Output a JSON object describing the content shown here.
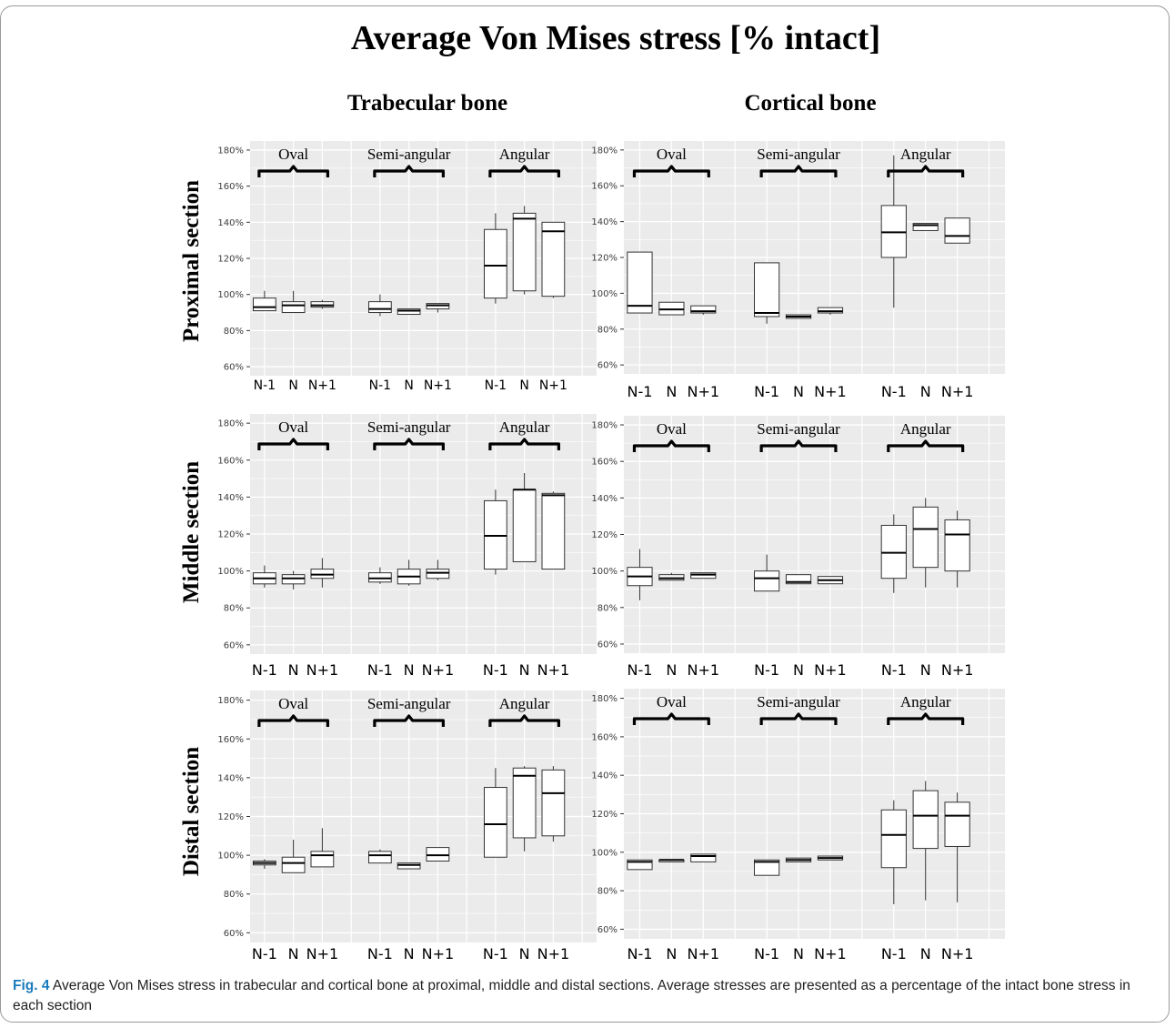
{
  "title": "Average Von Mises stress [% intact]",
  "caption": {
    "label": "Fig. 4",
    "text": " Average Von Mises stress in trabecular and cortical bone at proximal, middle and distal sections. Average stresses are presented as a percentage of the intact bone stress in each section"
  },
  "columns": [
    "Trabecular bone",
    "Cortical bone"
  ],
  "rows": [
    "Proximal section",
    "Middle section",
    "Distal section"
  ],
  "colors": {
    "panel_bg": "#ebebeb",
    "grid": "#ffffff",
    "box_fill": "#ffffff",
    "box_stroke": "#333333",
    "median": "#000000"
  },
  "chart_data": [
    {
      "type": "boxplot",
      "panel": "Trabecular bone / Proximal section",
      "ylim": [
        55,
        185
      ],
      "yticks": [
        "60%",
        "80%",
        "100%",
        "120%",
        "140%",
        "160%",
        "180%"
      ],
      "groups": [
        "Oval",
        "Semi-angular",
        "Angular"
      ],
      "categories": [
        "N-1",
        "N",
        "N+1"
      ],
      "boxes": [
        {
          "group": "Oval",
          "cat": "N-1",
          "min": 91,
          "q1": 91,
          "median": 93,
          "q3": 98,
          "max": 102
        },
        {
          "group": "Oval",
          "cat": "N",
          "min": 90,
          "q1": 90,
          "median": 94,
          "q3": 96,
          "max": 102
        },
        {
          "group": "Oval",
          "cat": "N+1",
          "min": 92,
          "q1": 93,
          "median": 94,
          "q3": 96,
          "max": 97
        },
        {
          "group": "Semi-angular",
          "cat": "N-1",
          "min": 88,
          "q1": 90,
          "median": 92,
          "q3": 96,
          "max": 100
        },
        {
          "group": "Semi-angular",
          "cat": "N",
          "min": 89,
          "q1": 89,
          "median": 91,
          "q3": 92,
          "max": 92
        },
        {
          "group": "Semi-angular",
          "cat": "N+1",
          "min": 90,
          "q1": 92,
          "median": 94,
          "q3": 95,
          "max": 95
        },
        {
          "group": "Angular",
          "cat": "N-1",
          "min": 95,
          "q1": 98,
          "median": 116,
          "q3": 136,
          "max": 145
        },
        {
          "group": "Angular",
          "cat": "N",
          "min": 100,
          "q1": 102,
          "median": 142,
          "q3": 145,
          "max": 149
        },
        {
          "group": "Angular",
          "cat": "N+1",
          "min": 98,
          "q1": 99,
          "median": 135,
          "q3": 140,
          "max": 140
        }
      ]
    },
    {
      "type": "boxplot",
      "panel": "Cortical bone / Proximal section",
      "ylim": [
        55,
        185
      ],
      "yticks": [
        "60%",
        "80%",
        "100%",
        "120%",
        "140%",
        "160%",
        "180%"
      ],
      "groups": [
        "Oval",
        "Semi-angular",
        "Angular"
      ],
      "categories": [
        "N-1",
        "N",
        "N+1"
      ],
      "boxes": [
        {
          "group": "Oval",
          "cat": "N-1",
          "min": 89,
          "q1": 89,
          "median": 93,
          "q3": 123,
          "max": 123
        },
        {
          "group": "Oval",
          "cat": "N",
          "min": 88,
          "q1": 88,
          "median": 91,
          "q3": 95,
          "max": 95
        },
        {
          "group": "Oval",
          "cat": "N+1",
          "min": 88,
          "q1": 89,
          "median": 90,
          "q3": 93,
          "max": 93
        },
        {
          "group": "Semi-angular",
          "cat": "N-1",
          "min": 83,
          "q1": 87,
          "median": 89,
          "q3": 117,
          "max": 117
        },
        {
          "group": "Semi-angular",
          "cat": "N",
          "min": 86,
          "q1": 86,
          "median": 87,
          "q3": 88,
          "max": 88
        },
        {
          "group": "Semi-angular",
          "cat": "N+1",
          "min": 88,
          "q1": 89,
          "median": 90,
          "q3": 92,
          "max": 92
        },
        {
          "group": "Angular",
          "cat": "N-1",
          "min": 92,
          "q1": 120,
          "median": 134,
          "q3": 149,
          "max": 177
        },
        {
          "group": "Angular",
          "cat": "N",
          "min": 135,
          "q1": 135,
          "median": 138,
          "q3": 139,
          "max": 139
        },
        {
          "group": "Angular",
          "cat": "N+1",
          "min": 128,
          "q1": 128,
          "median": 132,
          "q3": 142,
          "max": 142
        }
      ]
    },
    {
      "type": "boxplot",
      "panel": "Trabecular bone / Middle section",
      "ylim": [
        55,
        185
      ],
      "yticks": [
        "60%",
        "80%",
        "100%",
        "120%",
        "140%",
        "160%",
        "180%"
      ],
      "groups": [
        "Oval",
        "Semi-angular",
        "Angular"
      ],
      "categories": [
        "N-1",
        "N",
        "N+1"
      ],
      "boxes": [
        {
          "group": "Oval",
          "cat": "N-1",
          "min": 91,
          "q1": 93,
          "median": 96,
          "q3": 99,
          "max": 103
        },
        {
          "group": "Oval",
          "cat": "N",
          "min": 90,
          "q1": 93,
          "median": 96,
          "q3": 98,
          "max": 100
        },
        {
          "group": "Oval",
          "cat": "N+1",
          "min": 91,
          "q1": 96,
          "median": 98,
          "q3": 101,
          "max": 107
        },
        {
          "group": "Semi-angular",
          "cat": "N-1",
          "min": 93,
          "q1": 94,
          "median": 96,
          "q3": 99,
          "max": 102
        },
        {
          "group": "Semi-angular",
          "cat": "N",
          "min": 92,
          "q1": 93,
          "median": 97,
          "q3": 101,
          "max": 106
        },
        {
          "group": "Semi-angular",
          "cat": "N+1",
          "min": 95,
          "q1": 96,
          "median": 99,
          "q3": 101,
          "max": 106
        },
        {
          "group": "Angular",
          "cat": "N-1",
          "min": 98,
          "q1": 101,
          "median": 119,
          "q3": 138,
          "max": 144
        },
        {
          "group": "Angular",
          "cat": "N",
          "min": 105,
          "q1": 105,
          "median": 144,
          "q3": 144,
          "max": 153
        },
        {
          "group": "Angular",
          "cat": "N+1",
          "min": 101,
          "q1": 101,
          "median": 141,
          "q3": 142,
          "max": 143
        }
      ]
    },
    {
      "type": "boxplot",
      "panel": "Cortical bone / Middle section",
      "ylim": [
        55,
        185
      ],
      "yticks": [
        "60%",
        "80%",
        "100%",
        "120%",
        "140%",
        "160%",
        "180%"
      ],
      "groups": [
        "Oval",
        "Semi-angular",
        "Angular"
      ],
      "categories": [
        "N-1",
        "N",
        "N+1"
      ],
      "boxes": [
        {
          "group": "Oval",
          "cat": "N-1",
          "min": 84,
          "q1": 92,
          "median": 97,
          "q3": 102,
          "max": 112
        },
        {
          "group": "Oval",
          "cat": "N",
          "min": 95,
          "q1": 95,
          "median": 96,
          "q3": 98,
          "max": 99
        },
        {
          "group": "Oval",
          "cat": "N+1",
          "min": 96,
          "q1": 96,
          "median": 98,
          "q3": 99,
          "max": 99
        },
        {
          "group": "Semi-angular",
          "cat": "N-1",
          "min": 89,
          "q1": 89,
          "median": 96,
          "q3": 100,
          "max": 109
        },
        {
          "group": "Semi-angular",
          "cat": "N",
          "min": 93,
          "q1": 93,
          "median": 94,
          "q3": 98,
          "max": 98
        },
        {
          "group": "Semi-angular",
          "cat": "N+1",
          "min": 93,
          "q1": 93,
          "median": 95,
          "q3": 97,
          "max": 97
        },
        {
          "group": "Angular",
          "cat": "N-1",
          "min": 88,
          "q1": 96,
          "median": 110,
          "q3": 125,
          "max": 131
        },
        {
          "group": "Angular",
          "cat": "N",
          "min": 91,
          "q1": 102,
          "median": 123,
          "q3": 135,
          "max": 140
        },
        {
          "group": "Angular",
          "cat": "N+1",
          "min": 91,
          "q1": 100,
          "median": 120,
          "q3": 128,
          "max": 133
        }
      ]
    },
    {
      "type": "boxplot",
      "panel": "Trabecular bone / Distal section",
      "ylim": [
        55,
        185
      ],
      "yticks": [
        "60%",
        "80%",
        "100%",
        "120%",
        "140%",
        "160%",
        "180%"
      ],
      "groups": [
        "Oval",
        "Semi-angular",
        "Angular"
      ],
      "categories": [
        "N-1",
        "N",
        "N+1"
      ],
      "boxes": [
        {
          "group": "Oval",
          "cat": "N-1",
          "min": 93,
          "q1": 95,
          "median": 96,
          "q3": 97,
          "max": 98
        },
        {
          "group": "Oval",
          "cat": "N",
          "min": 91,
          "q1": 91,
          "median": 96,
          "q3": 99,
          "max": 108
        },
        {
          "group": "Oval",
          "cat": "N+1",
          "min": 94,
          "q1": 94,
          "median": 100,
          "q3": 102,
          "max": 114
        },
        {
          "group": "Semi-angular",
          "cat": "N-1",
          "min": 96,
          "q1": 96,
          "median": 100,
          "q3": 102,
          "max": 103
        },
        {
          "group": "Semi-angular",
          "cat": "N",
          "min": 93,
          "q1": 93,
          "median": 95,
          "q3": 96,
          "max": 96
        },
        {
          "group": "Semi-angular",
          "cat": "N+1",
          "min": 97,
          "q1": 97,
          "median": 100,
          "q3": 104,
          "max": 104
        },
        {
          "group": "Angular",
          "cat": "N-1",
          "min": 99,
          "q1": 99,
          "median": 116,
          "q3": 135,
          "max": 145
        },
        {
          "group": "Angular",
          "cat": "N",
          "min": 102,
          "q1": 109,
          "median": 141,
          "q3": 145,
          "max": 146
        },
        {
          "group": "Angular",
          "cat": "N+1",
          "min": 107,
          "q1": 110,
          "median": 132,
          "q3": 144,
          "max": 146
        }
      ]
    },
    {
      "type": "boxplot",
      "panel": "Cortical bone / Distal section",
      "ylim": [
        55,
        185
      ],
      "yticks": [
        "60%",
        "80%",
        "100%",
        "120%",
        "140%",
        "160%",
        "180%"
      ],
      "groups": [
        "Oval",
        "Semi-angular",
        "Angular"
      ],
      "categories": [
        "N-1",
        "N",
        "N+1"
      ],
      "boxes": [
        {
          "group": "Oval",
          "cat": "N-1",
          "min": 91,
          "q1": 91,
          "median": 95,
          "q3": 96,
          "max": 96
        },
        {
          "group": "Oval",
          "cat": "N",
          "min": 95,
          "q1": 95,
          "median": 96,
          "q3": 96,
          "max": 96
        },
        {
          "group": "Oval",
          "cat": "N+1",
          "min": 95,
          "q1": 95,
          "median": 98,
          "q3": 99,
          "max": 99
        },
        {
          "group": "Semi-angular",
          "cat": "N-1",
          "min": 88,
          "q1": 88,
          "median": 95,
          "q3": 96,
          "max": 96
        },
        {
          "group": "Semi-angular",
          "cat": "N",
          "min": 95,
          "q1": 95,
          "median": 96,
          "q3": 97,
          "max": 97
        },
        {
          "group": "Semi-angular",
          "cat": "N+1",
          "min": 96,
          "q1": 96,
          "median": 97,
          "q3": 98,
          "max": 98
        },
        {
          "group": "Angular",
          "cat": "N-1",
          "min": 73,
          "q1": 92,
          "median": 109,
          "q3": 122,
          "max": 127
        },
        {
          "group": "Angular",
          "cat": "N",
          "min": 75,
          "q1": 102,
          "median": 119,
          "q3": 132,
          "max": 137
        },
        {
          "group": "Angular",
          "cat": "N+1",
          "min": 74,
          "q1": 103,
          "median": 119,
          "q3": 126,
          "max": 131
        }
      ]
    }
  ]
}
